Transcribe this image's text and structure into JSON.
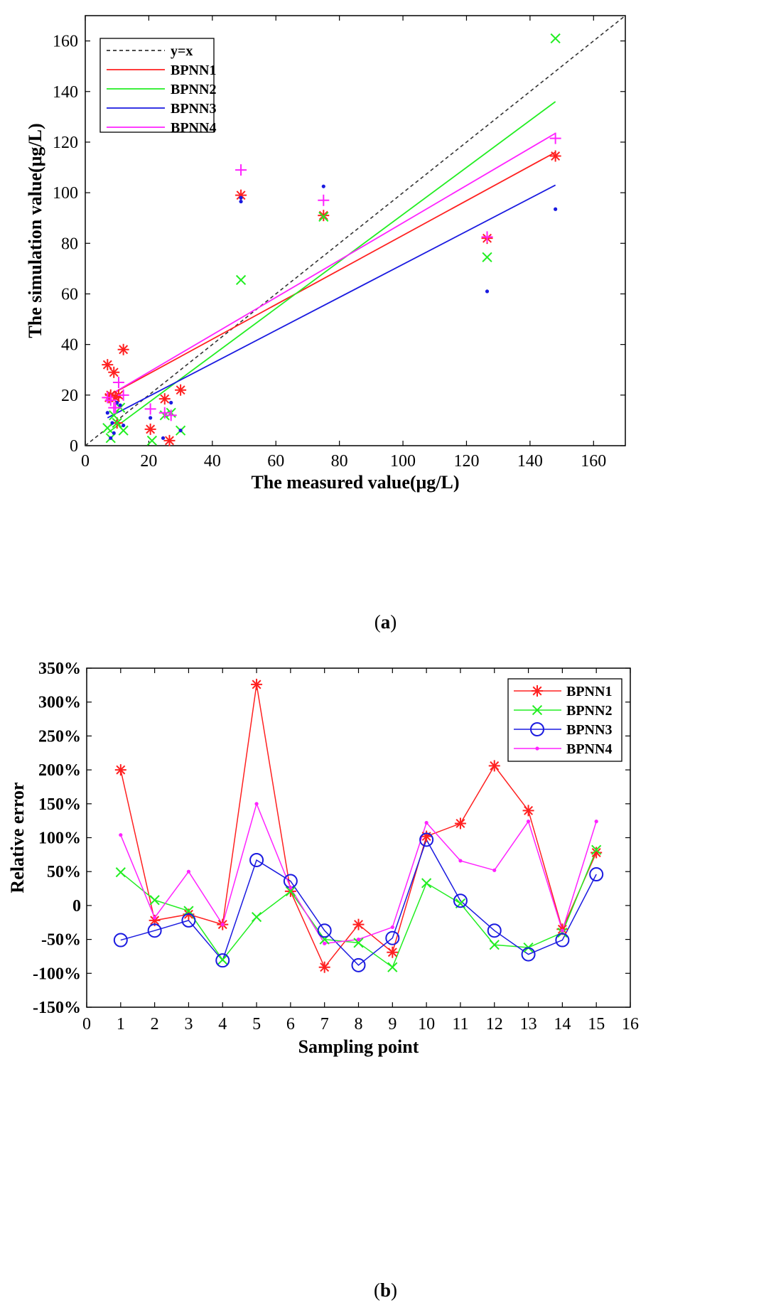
{
  "captions": {
    "a_pre": "(",
    "a_letter": "a",
    "a_post": ")",
    "b_pre": "(",
    "b_letter": "b",
    "b_post": ")"
  },
  "chart_data": [
    {
      "type": "scatter",
      "title": "",
      "xlabel": "The measured value(μg/L)",
      "ylabel": "The simulation value(μg/L)",
      "xlim": [
        0,
        170
      ],
      "ylim": [
        0,
        170
      ],
      "xticks": [
        0,
        20,
        40,
        60,
        80,
        100,
        120,
        140,
        160
      ],
      "yticks": [
        0,
        20,
        40,
        60,
        80,
        100,
        120,
        140,
        160
      ],
      "legend_position": "top-left",
      "reference_line": {
        "name": "y=x",
        "color": "#333333",
        "from": [
          0,
          0
        ],
        "to": [
          170,
          170
        ]
      },
      "series": [
        {
          "name": "BPNN1",
          "color": "#ff2020",
          "marker": "asterisk",
          "fit_line": [
            [
              7,
              19.5
            ],
            [
              148,
              116
            ]
          ],
          "points": [
            [
              7,
              32
            ],
            [
              7.5,
              19
            ],
            [
              8,
              20
            ],
            [
              9,
              29
            ],
            [
              9.5,
              19
            ],
            [
              10,
              9
            ],
            [
              10.5,
              20
            ],
            [
              12,
              38
            ],
            [
              20.5,
              6.5
            ],
            [
              25,
              18.5
            ],
            [
              26.5,
              2
            ],
            [
              30,
              22
            ],
            [
              49,
              99
            ],
            [
              75,
              91
            ],
            [
              126.5,
              82
            ],
            [
              148,
              114.5
            ]
          ]
        },
        {
          "name": "BPNN2",
          "color": "#22ee22",
          "marker": "x",
          "fit_line": [
            [
              7,
              5
            ],
            [
              148,
              136
            ]
          ],
          "points": [
            [
              7,
              7
            ],
            [
              8,
              3
            ],
            [
              9,
              12
            ],
            [
              10,
              9
            ],
            [
              11,
              15
            ],
            [
              12,
              6
            ],
            [
              21,
              2
            ],
            [
              25,
              12
            ],
            [
              27,
              13
            ],
            [
              30,
              6
            ],
            [
              49,
              65.5
            ],
            [
              75,
              90.5
            ],
            [
              126.5,
              74.5
            ],
            [
              148,
              161
            ]
          ]
        },
        {
          "name": "BPNN3",
          "color": "#1a1ae0",
          "marker": "dot",
          "fit_line": [
            [
              7,
              11
            ],
            [
              148,
              103
            ]
          ],
          "points": [
            [
              7,
              13
            ],
            [
              8,
              3
            ],
            [
              8.5,
              9
            ],
            [
              9,
              5
            ],
            [
              10,
              17
            ],
            [
              11,
              16
            ],
            [
              12,
              8
            ],
            [
              20.5,
              11
            ],
            [
              24.5,
              3
            ],
            [
              27,
              17
            ],
            [
              30,
              6
            ],
            [
              49,
              96.5
            ],
            [
              49,
              98
            ],
            [
              75,
              102.5
            ],
            [
              126.5,
              61
            ],
            [
              148,
              93.5
            ]
          ]
        },
        {
          "name": "BPNN4",
          "color": "#ff22ff",
          "marker": "plus",
          "fit_line": [
            [
              7,
              19.5
            ],
            [
              148,
              123.5
            ]
          ],
          "points": [
            [
              7,
              19
            ],
            [
              8,
              18
            ],
            [
              9,
              15
            ],
            [
              9.5,
              15
            ],
            [
              10.5,
              25
            ],
            [
              12,
              20
            ],
            [
              20.5,
              14.5
            ],
            [
              25,
              13
            ],
            [
              27,
              12
            ],
            [
              49,
              109
            ],
            [
              75,
              97
            ],
            [
              126.5,
              82.5
            ],
            [
              148,
              121.5
            ]
          ]
        }
      ]
    },
    {
      "type": "line",
      "title": "",
      "xlabel": "Sampling point",
      "ylabel": "Relative error",
      "xlim": [
        0,
        16
      ],
      "ylim": [
        -150,
        350
      ],
      "xticks": [
        0,
        1,
        2,
        3,
        4,
        5,
        6,
        7,
        8,
        9,
        10,
        11,
        12,
        13,
        14,
        15,
        16
      ],
      "yticks": [
        -150,
        -100,
        -50,
        0,
        50,
        100,
        150,
        200,
        250,
        300,
        350
      ],
      "ytick_labels": [
        "-150%",
        "-100%",
        "-50%",
        "0",
        "50%",
        "100%",
        "150%",
        "200%",
        "250%",
        "300%",
        "350%"
      ],
      "legend_position": "top-right",
      "x": [
        1,
        2,
        3,
        4,
        5,
        6,
        7,
        8,
        9,
        10,
        11,
        12,
        13,
        14,
        15
      ],
      "series": [
        {
          "name": "BPNN1",
          "color": "#ff2020",
          "marker": "asterisk",
          "values": [
            200,
            -22,
            -13,
            -28,
            326,
            21,
            -91,
            -28,
            -69,
            102,
            121,
            206,
            140,
            -35,
            78
          ]
        },
        {
          "name": "BPNN2",
          "color": "#22ee22",
          "marker": "x",
          "values": [
            49,
            8,
            -8,
            -80,
            -17,
            21,
            -50,
            -55,
            -91,
            33,
            3,
            -58,
            -62,
            -40,
            82
          ]
        },
        {
          "name": "BPNN3",
          "color": "#1a1ae0",
          "marker": "circle",
          "values": [
            -51,
            -37,
            -22,
            -81,
            67,
            36,
            -37,
            -88,
            -48,
            97,
            7,
            -37,
            -72,
            -51,
            46
          ]
        },
        {
          "name": "BPNN4",
          "color": "#ff22ff",
          "marker": "dot",
          "values": [
            104,
            -18,
            50,
            -28,
            150,
            26,
            -56,
            -50,
            -32,
            122,
            66,
            52,
            124,
            -37,
            124
          ]
        }
      ]
    }
  ]
}
